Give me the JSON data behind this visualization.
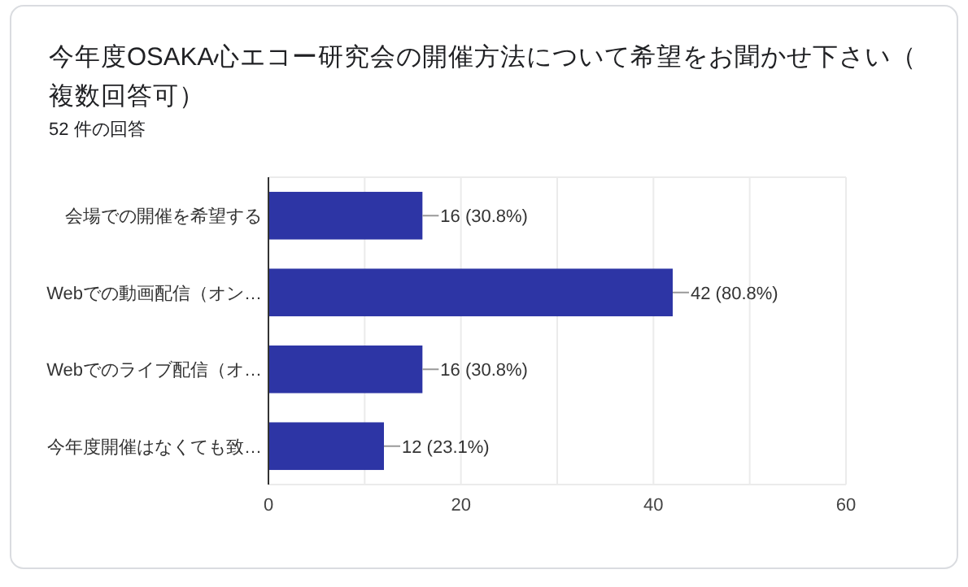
{
  "chart_data": {
    "type": "bar",
    "orientation": "horizontal",
    "title": "今年度OSAKA心エコー研究会の開催方法について希望をお聞かせ下さい（複数回答可）",
    "subtitle": "52 件の回答",
    "categories": [
      "会場での開催を希望する",
      "Webでの動画配信（オン…",
      "Webでのライブ配信（オ…",
      "今年度開催はなくても致…"
    ],
    "values": [
      16,
      42,
      16,
      12
    ],
    "value_labels": [
      "16 (30.8%)",
      "42 (80.8%)",
      "16 (30.8%)",
      "12 (23.1%)"
    ],
    "color": "#2d35a5",
    "xlim": [
      0,
      60
    ],
    "xticks": [
      0,
      {
        "value": 10,
        "label": null
      },
      20,
      {
        "value": 30,
        "label": null
      },
      40,
      {
        "value": 50,
        "label": null
      },
      60
    ],
    "grid": "x"
  }
}
